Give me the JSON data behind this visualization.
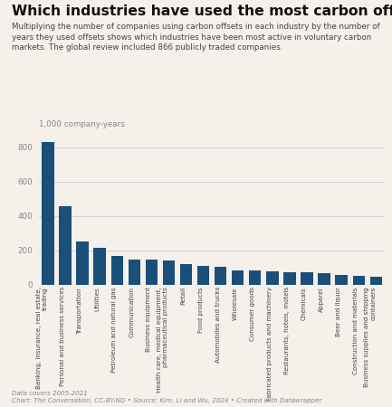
{
  "title": "Which industries have used the most carbon offsets?",
  "subtitle": "Multiplying the number of companies using carbon offsets in each industry by the number of\nyears they used offsets shows which industries have been most active in voluntary carbon\nmarkets. The global review included 866 publicly traded companies.",
  "ylabel": "1,000 company-years",
  "footer": "Data covers 2005-2021\nChart: The Conversation, CC-BY-ND • Source: Kim, Li and Wu, 2024 • Created with Datawrapper",
  "categories": [
    "Banking, insurance, real estate,\ntrading",
    "Personal and business services",
    "Transportation",
    "Utilities",
    "Petroleum and natural gas",
    "Communication",
    "Business equipment",
    "Health care, medical equipment,\npharmaceutical products",
    "Retail",
    "Food products",
    "Automobiles and trucks",
    "Wholesale",
    "Consumer goods",
    "Fabricated products and machinery",
    "Restaurants, hotels, motels",
    "Chemicals",
    "Apparel",
    "Beer and liquor",
    "Construction and materials",
    "Business supplies and shipping\ncontainers"
  ],
  "values": [
    830,
    460,
    252,
    218,
    168,
    148,
    145,
    140,
    122,
    112,
    105,
    85,
    82,
    80,
    75,
    73,
    68,
    60,
    55,
    50
  ],
  "bar_color": "#1a4f7a",
  "background_color": "#f5f0ea",
  "ylim": [
    0,
    900
  ],
  "yticks": [
    0,
    200,
    400,
    600,
    800
  ],
  "title_fontsize": 7.5,
  "subtitle_fontsize": 4.2,
  "ylabel_fontsize": 4.2,
  "footer_fontsize": 3.4,
  "tick_label_fontsize": 3.4,
  "ytick_fontsize": 4.2
}
